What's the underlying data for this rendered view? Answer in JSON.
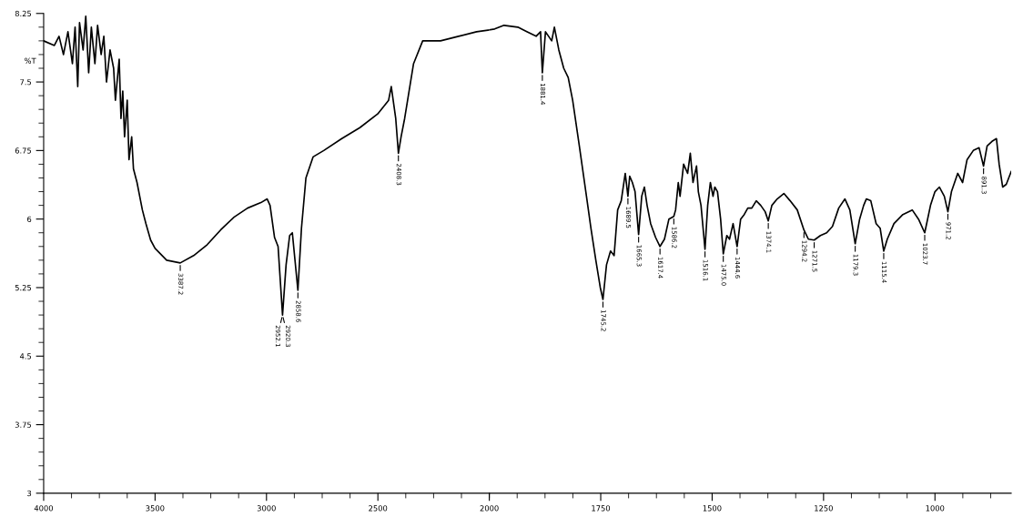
{
  "chart_data": [
    {
      "type": "line",
      "ylabel": "%T",
      "xlim": [
        4000,
        2000
      ],
      "xticks": [
        4000,
        3500,
        3000,
        2500,
        2000
      ],
      "ylim": [
        3,
        8.25
      ],
      "yticks": [
        3,
        3.75,
        4.5,
        5.25,
        6,
        6.75,
        7.5,
        8.25
      ],
      "series": [
        {
          "color": "#000000",
          "x": [
            4000,
            3952,
            3931,
            3911,
            3891,
            3871,
            3859,
            3847,
            3839,
            3823,
            3811,
            3798,
            3786,
            3770,
            3758,
            3742,
            3730,
            3718,
            3702,
            3686,
            3678,
            3661,
            3653,
            3645,
            3637,
            3625,
            3617,
            3605,
            3597,
            3581,
            3569,
            3557,
            3541,
            3520,
            3500,
            3476,
            3448,
            3387,
            3327,
            3266,
            3206,
            3146,
            3085,
            3025,
            2997,
            2984,
            2964,
            2948,
            2928,
            2912,
            2896,
            2884,
            2859,
            2843,
            2823,
            2791,
            2743,
            2662,
            2581,
            2501,
            2452,
            2440,
            2420,
            2408,
            2396,
            2380,
            2340,
            2299,
            2219,
            2138,
            2057,
            2000
          ],
          "values": [
            7.95,
            7.9,
            8.0,
            7.8,
            8.05,
            7.7,
            8.1,
            7.45,
            8.15,
            7.85,
            8.22,
            7.6,
            8.1,
            7.7,
            8.12,
            7.8,
            8.0,
            7.5,
            7.85,
            7.65,
            7.3,
            7.75,
            7.1,
            7.4,
            6.9,
            7.3,
            6.65,
            6.9,
            6.55,
            6.4,
            6.25,
            6.1,
            5.95,
            5.77,
            5.68,
            5.62,
            5.55,
            5.52,
            5.6,
            5.72,
            5.88,
            6.02,
            6.12,
            6.18,
            6.22,
            6.15,
            5.8,
            5.7,
            4.95,
            5.5,
            5.82,
            5.85,
            5.22,
            5.9,
            6.45,
            6.68,
            6.75,
            6.88,
            7.0,
            7.15,
            7.3,
            7.45,
            7.1,
            6.72,
            6.9,
            7.1,
            7.7,
            7.95,
            7.95,
            8.0,
            8.05,
            8.07
          ]
        }
      ],
      "annotations": [
        {
          "text": "3387.2",
          "x": 3387,
          "y": 5.52
        },
        {
          "text": "2952.1",
          "x": 2928,
          "y": 4.95
        },
        {
          "text": "2920.3",
          "x": 2928,
          "y": 4.95
        },
        {
          "text": "2858.6",
          "x": 2859,
          "y": 5.22
        },
        {
          "text": "2408.3",
          "x": 2408,
          "y": 6.72
        }
      ]
    },
    {
      "type": "line",
      "tick_labels": "x",
      "xlim": [
        2000,
        829
      ],
      "xticks": [
        1750,
        1500,
        1250,
        1000
      ],
      "ylim": [
        3,
        8.25
      ],
      "series": [
        {
          "color": "#000000",
          "x": [
            2000,
            1988,
            1967,
            1936,
            1916,
            1895,
            1885,
            1881,
            1874,
            1860,
            1854,
            1844,
            1833,
            1823,
            1813,
            1798,
            1782,
            1772,
            1761,
            1751,
            1745,
            1737,
            1728,
            1720,
            1712,
            1704,
            1695,
            1689,
            1685,
            1679,
            1673,
            1665,
            1658,
            1652,
            1646,
            1638,
            1627,
            1617,
            1607,
            1597,
            1586,
            1582,
            1576,
            1572,
            1564,
            1555,
            1549,
            1543,
            1535,
            1531,
            1525,
            1516,
            1510,
            1504,
            1498,
            1494,
            1488,
            1481,
            1475,
            1467,
            1461,
            1453,
            1444,
            1436,
            1428,
            1420,
            1411,
            1401,
            1391,
            1381,
            1374,
            1366,
            1354,
            1339,
            1325,
            1309,
            1294,
            1284,
            1271,
            1257,
            1243,
            1230,
            1216,
            1202,
            1191,
            1179,
            1169,
            1160,
            1154,
            1144,
            1132,
            1123,
            1115,
            1107,
            1092,
            1072,
            1051,
            1037,
            1023,
            1010,
            1000,
            990,
            979,
            971,
            963,
            949,
            938,
            928,
            914,
            901,
            891,
            883,
            872,
            862,
            856,
            848,
            840,
            829
          ],
          "values": [
            8.07,
            8.08,
            8.12,
            8.1,
            8.05,
            8.0,
            8.05,
            7.6,
            8.05,
            7.95,
            8.1,
            7.85,
            7.65,
            7.55,
            7.3,
            6.8,
            6.25,
            5.9,
            5.55,
            5.25,
            5.12,
            5.5,
            5.65,
            5.6,
            6.1,
            6.2,
            6.5,
            6.25,
            6.47,
            6.4,
            6.3,
            5.83,
            6.25,
            6.35,
            6.15,
            5.95,
            5.8,
            5.7,
            5.78,
            6.0,
            6.03,
            6.1,
            6.4,
            6.25,
            6.6,
            6.5,
            6.72,
            6.4,
            6.58,
            6.3,
            6.15,
            5.67,
            6.15,
            6.4,
            6.25,
            6.35,
            6.3,
            6.0,
            5.62,
            5.82,
            5.78,
            5.95,
            5.7,
            6.0,
            6.05,
            6.12,
            6.12,
            6.2,
            6.15,
            6.08,
            5.98,
            6.15,
            6.22,
            6.28,
            6.2,
            6.1,
            5.88,
            5.78,
            5.77,
            5.82,
            5.85,
            5.92,
            6.12,
            6.22,
            6.1,
            5.73,
            6.0,
            6.15,
            6.22,
            6.2,
            5.95,
            5.9,
            5.65,
            5.78,
            5.95,
            6.05,
            6.1,
            6.0,
            5.85,
            6.15,
            6.3,
            6.35,
            6.25,
            6.08,
            6.3,
            6.5,
            6.4,
            6.65,
            6.75,
            6.78,
            6.58,
            6.8,
            6.85,
            6.88,
            6.6,
            6.35,
            6.38,
            6.52
          ]
        }
      ],
      "annotations": [
        {
          "text": "1881.4",
          "x": 1881,
          "y": 7.6
        },
        {
          "text": "1745.2",
          "x": 1745,
          "y": 5.12
        },
        {
          "text": "1689.5",
          "x": 1689,
          "y": 6.25
        },
        {
          "text": "1665.3",
          "x": 1665,
          "y": 5.83
        },
        {
          "text": "1617.4",
          "x": 1617,
          "y": 5.7
        },
        {
          "text": "1586.2",
          "x": 1586,
          "y": 6.03
        },
        {
          "text": "1516.1",
          "x": 1516,
          "y": 5.67
        },
        {
          "text": "1475.0",
          "x": 1475,
          "y": 5.62
        },
        {
          "text": "1444.6",
          "x": 1444,
          "y": 5.7
        },
        {
          "text": "1374.1",
          "x": 1374,
          "y": 5.98
        },
        {
          "text": "1294.2",
          "x": 1294,
          "y": 5.88
        },
        {
          "text": "1271.5",
          "x": 1271,
          "y": 5.77
        },
        {
          "text": "1179.3",
          "x": 1179,
          "y": 5.73
        },
        {
          "text": "1115.4",
          "x": 1115,
          "y": 5.65
        },
        {
          "text": "1023.7",
          "x": 1023,
          "y": 5.85
        },
        {
          "text": "971.2",
          "x": 971,
          "y": 6.08
        },
        {
          "text": "891.3",
          "x": 891,
          "y": 6.58
        }
      ]
    }
  ]
}
